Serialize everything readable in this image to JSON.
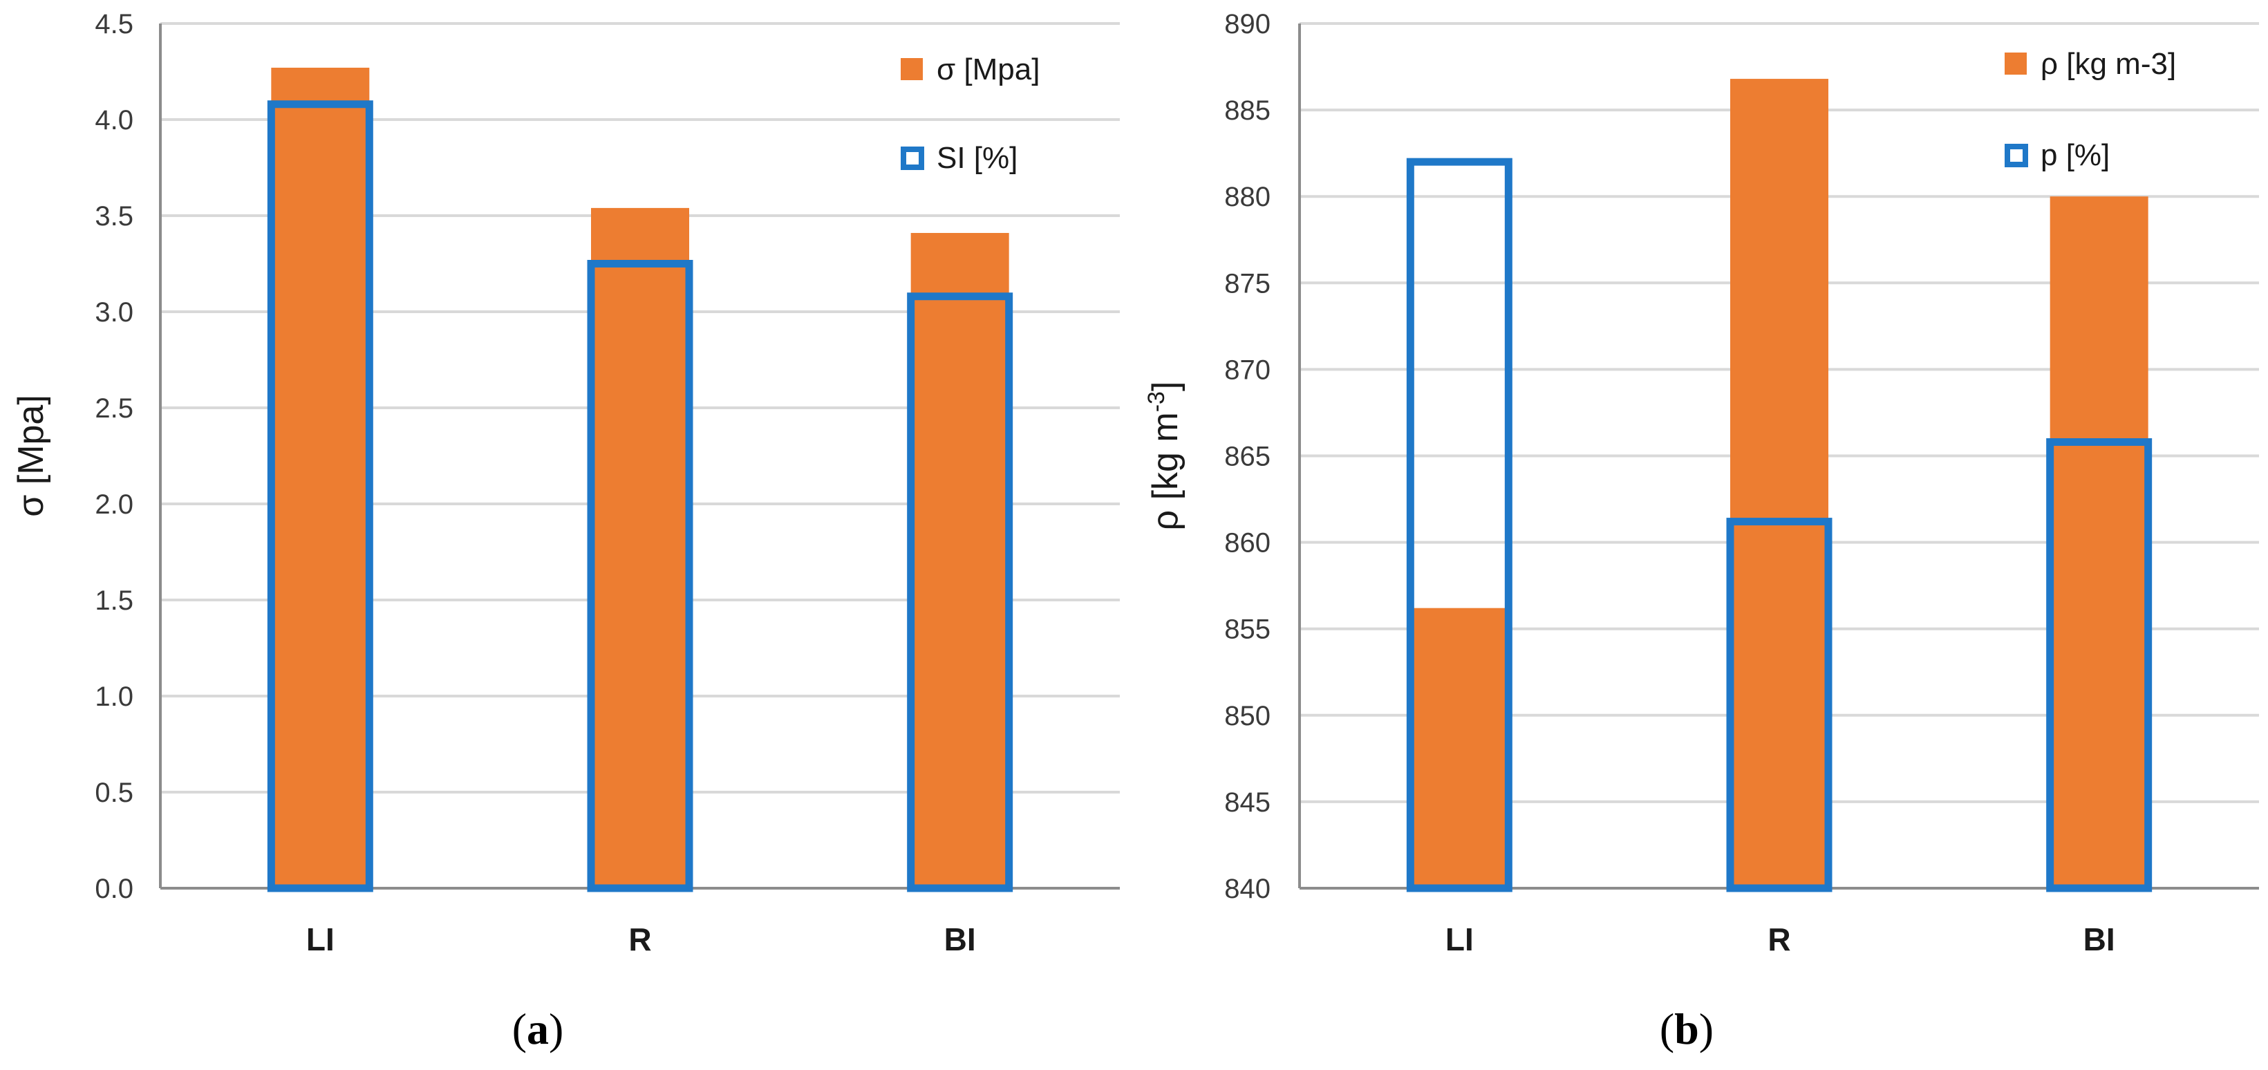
{
  "colors": {
    "bar_fill": "#ED7D31",
    "outline": "#1F78C8",
    "grid": "#D9D9D9",
    "axis": "#8C8C8C"
  },
  "chart_data": [
    {
      "type": "bar",
      "categories": [
        "LI",
        "R",
        "BI"
      ],
      "series": [
        {
          "name": "σ [Mpa]",
          "style": "filled",
          "values": [
            4.27,
            3.54,
            3.41
          ]
        },
        {
          "name": "SI  [%]",
          "style": "outline",
          "values": [
            4.08,
            3.25,
            3.08
          ]
        }
      ],
      "ylabel": "σ [Mpa]",
      "xlabel": "",
      "ylim": [
        0,
        4.5
      ],
      "yticks": [
        "0.0",
        "0.5",
        "1.0",
        "1.5",
        "2.0",
        "2.5",
        "3.0",
        "3.5",
        "4.0",
        "4.5"
      ],
      "grid": true,
      "legend": "top-right",
      "caption_open": "(",
      "caption_letter": "a",
      "caption_close": ")"
    },
    {
      "type": "bar",
      "categories": [
        "LI",
        "R",
        "BI"
      ],
      "series": [
        {
          "name": "ρ [kg m-3]",
          "style": "filled",
          "values": [
            856.2,
            886.8,
            880.0
          ]
        },
        {
          "name": "p [%]",
          "style": "outline",
          "values": [
            882.0,
            861.2,
            865.8
          ]
        }
      ],
      "ylabel": "ρ [kg m",
      "ylabel_sup": "-3",
      "ylabel_end": "]",
      "xlabel": "",
      "ylim": [
        840,
        890
      ],
      "yticks": [
        "840",
        "845",
        "850",
        "855",
        "860",
        "865",
        "870",
        "875",
        "880",
        "885",
        "890"
      ],
      "grid": true,
      "legend": "top-right",
      "caption_open": "(",
      "caption_letter": "b",
      "caption_close": ")"
    }
  ]
}
